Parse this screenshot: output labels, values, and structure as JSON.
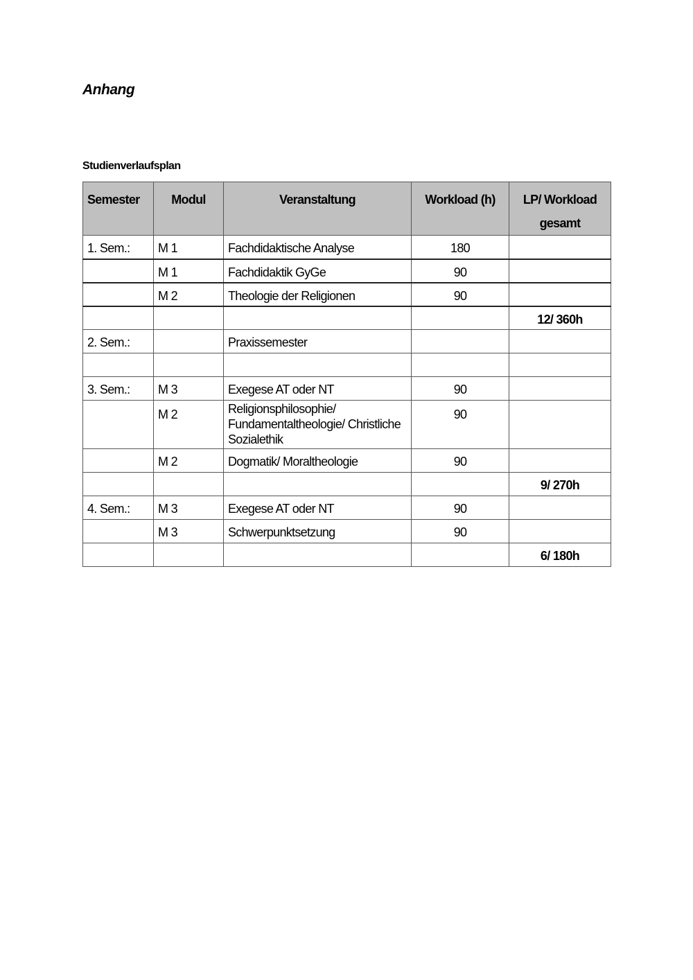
{
  "title": "Anhang",
  "subtitle": "Studienverlaufsplan",
  "table": {
    "headers": [
      "Semester",
      "Modul",
      "Veranstaltung",
      "Workload (h)",
      "LP/ Workload gesamt"
    ],
    "rows": [
      [
        "1. Sem.:",
        "M 1",
        "Fachdidaktische Analyse",
        "180",
        ""
      ],
      [
        "",
        "M 1",
        "Fachdidaktik GyGe",
        "90",
        ""
      ],
      [
        "",
        "M 2",
        "Theologie der Religionen",
        "90",
        ""
      ],
      [
        "",
        "",
        "",
        "",
        "12/ 360h"
      ],
      [
        "2. Sem.:",
        "",
        "Praxissemester",
        "",
        ""
      ],
      [
        "",
        "",
        "",
        "",
        ""
      ],
      [
        "3. Sem.:",
        "M 3",
        "Exegese AT oder NT",
        "90",
        ""
      ],
      [
        "",
        "M 2",
        "Religionsphilosophie/\nFundamentaltheologie/ Christliche\nSozialethik",
        "90",
        ""
      ],
      [
        "",
        "M 2",
        "Dogmatik/ Moraltheologie",
        "90",
        ""
      ],
      [
        "",
        "",
        "",
        "",
        "9/ 270h"
      ],
      [
        "4. Sem.:",
        "M 3",
        "Exegese AT oder NT",
        "90",
        ""
      ],
      [
        "",
        "M 3",
        "Schwerpunktsetzung",
        "90",
        ""
      ],
      [
        "",
        "",
        "",
        "",
        "6/ 180h"
      ]
    ]
  }
}
